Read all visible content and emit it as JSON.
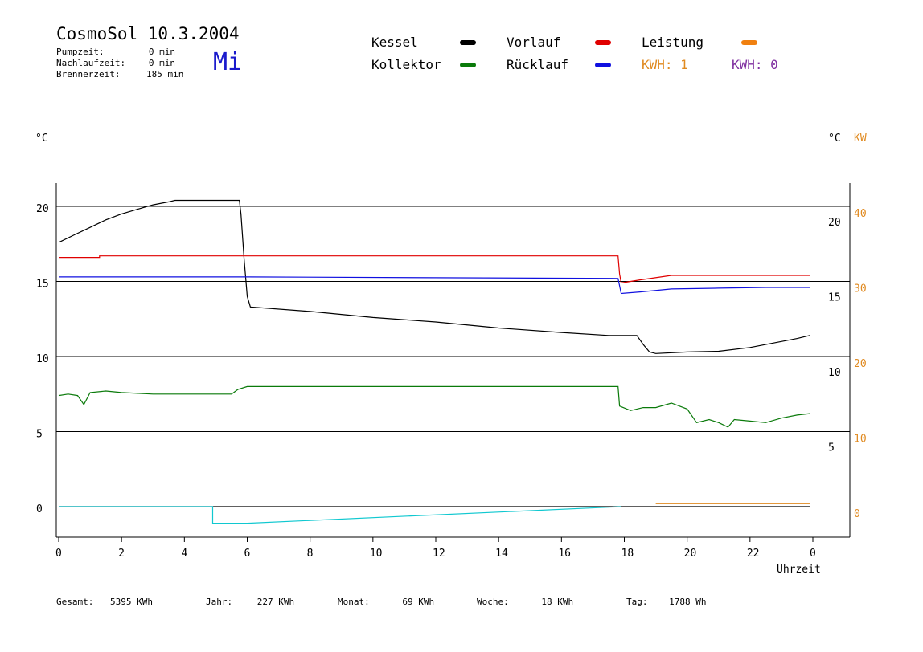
{
  "header": {
    "title": "CosmoSol 10.3.2004",
    "weekday": "Mi",
    "stats": [
      {
        "label": "Pumpzeit:",
        "value": "0 min"
      },
      {
        "label": "Nachlaufzeit:",
        "value": "0 min"
      },
      {
        "label": "Brennerzeit:",
        "value": "185 min"
      }
    ]
  },
  "legend": {
    "items": [
      {
        "label": "Kessel",
        "color": "#000000"
      },
      {
        "label": "Vorlauf",
        "color": "#e00000"
      },
      {
        "label": "Leistung",
        "color": "#f08010"
      },
      {
        "label": "Kollektor",
        "color": "#0a7a0a"
      },
      {
        "label": "Rücklauf",
        "color": "#1010e0"
      }
    ],
    "kwh_orange": "KWH: 1",
    "kwh_purple": "KWH: 0",
    "kwh_orange_color": "#e08a20",
    "kwh_purple_color": "#8030a0"
  },
  "axes": {
    "left_unit": "°C",
    "right_unit": "°C",
    "right_unit2": "KW",
    "xlabel": "Uhrzeit"
  },
  "footer": {
    "items": [
      {
        "label": "Gesamt:",
        "value": "5395 KWh"
      },
      {
        "label": "Jahr:",
        "value": "227 KWh"
      },
      {
        "label": "Monat:",
        "value": "69 KWh"
      },
      {
        "label": "Woche:",
        "value": "18 KWh"
      },
      {
        "label": "Tag:",
        "value": "1788 Wh"
      }
    ]
  },
  "chart_data": {
    "type": "line",
    "x_ticks": [
      "0",
      "2",
      "4",
      "6",
      "8",
      "10",
      "12",
      "14",
      "16",
      "18",
      "20",
      "22",
      "0"
    ],
    "xlim": [
      0,
      24
    ],
    "left_axis": {
      "ticks": [
        0,
        5,
        10,
        15,
        20
      ],
      "ylim": [
        -2,
        22
      ]
    },
    "right_axis_temp": {
      "ticks": [
        5,
        10,
        15,
        20
      ]
    },
    "right_axis_kw": {
      "ticks": [
        0,
        10,
        20,
        30,
        40
      ],
      "color": "#e08a20"
    },
    "grid": "horizontal",
    "series": [
      {
        "name": "Kessel",
        "color": "#000000",
        "points": [
          [
            0,
            17.6
          ],
          [
            0.5,
            18.1
          ],
          [
            1,
            18.6
          ],
          [
            1.5,
            19.1
          ],
          [
            2,
            19.5
          ],
          [
            2.5,
            19.8
          ],
          [
            3,
            20.1
          ],
          [
            3.5,
            20.3
          ],
          [
            3.7,
            20.4
          ],
          [
            5.75,
            20.4
          ],
          [
            5.8,
            19.5
          ],
          [
            5.9,
            16.5
          ],
          [
            6,
            14.0
          ],
          [
            6.1,
            13.3
          ],
          [
            8,
            13.0
          ],
          [
            10,
            12.6
          ],
          [
            12,
            12.3
          ],
          [
            14,
            11.9
          ],
          [
            16,
            11.6
          ],
          [
            17.5,
            11.4
          ],
          [
            18.4,
            11.4
          ],
          [
            18.6,
            10.8
          ],
          [
            18.8,
            10.3
          ],
          [
            19,
            10.2
          ],
          [
            20,
            10.3
          ],
          [
            21,
            10.35
          ],
          [
            22,
            10.6
          ],
          [
            23,
            11.0
          ],
          [
            23.5,
            11.2
          ],
          [
            23.9,
            11.4
          ]
        ]
      },
      {
        "name": "Vorlauf",
        "color": "#e00000",
        "points": [
          [
            0,
            16.6
          ],
          [
            1.3,
            16.6
          ],
          [
            1.3,
            16.7
          ],
          [
            17.8,
            16.7
          ],
          [
            17.85,
            15.5
          ],
          [
            17.9,
            14.9
          ],
          [
            18.5,
            15.1
          ],
          [
            19.5,
            15.4
          ],
          [
            20.5,
            15.4
          ],
          [
            22,
            15.4
          ],
          [
            23.9,
            15.4
          ]
        ]
      },
      {
        "name": "Rücklauf",
        "color": "#1010e0",
        "points": [
          [
            0,
            15.3
          ],
          [
            6,
            15.3
          ],
          [
            17.8,
            15.2
          ],
          [
            17.9,
            14.2
          ],
          [
            18.5,
            14.3
          ],
          [
            19.5,
            14.5
          ],
          [
            21,
            14.55
          ],
          [
            22.5,
            14.6
          ],
          [
            23.9,
            14.6
          ]
        ]
      },
      {
        "name": "Kollektor",
        "color": "#0a7a0a",
        "points": [
          [
            0,
            7.4
          ],
          [
            0.3,
            7.5
          ],
          [
            0.6,
            7.4
          ],
          [
            0.8,
            6.8
          ],
          [
            1,
            7.6
          ],
          [
            1.5,
            7.7
          ],
          [
            2,
            7.6
          ],
          [
            3,
            7.5
          ],
          [
            4,
            7.5
          ],
          [
            5,
            7.5
          ],
          [
            5.5,
            7.5
          ],
          [
            5.7,
            7.8
          ],
          [
            6,
            8.0
          ],
          [
            10,
            8.0
          ],
          [
            15,
            8.0
          ],
          [
            17.8,
            8.0
          ],
          [
            17.85,
            6.7
          ],
          [
            18.2,
            6.4
          ],
          [
            18.6,
            6.6
          ],
          [
            19,
            6.6
          ],
          [
            19.5,
            6.9
          ],
          [
            20,
            6.5
          ],
          [
            20.3,
            5.6
          ],
          [
            20.7,
            5.8
          ],
          [
            21,
            5.6
          ],
          [
            21.3,
            5.3
          ],
          [
            21.5,
            5.8
          ],
          [
            22,
            5.7
          ],
          [
            22.5,
            5.6
          ],
          [
            23,
            5.9
          ],
          [
            23.5,
            6.1
          ],
          [
            23.9,
            6.2
          ]
        ]
      },
      {
        "name": "Kessel (0 line)",
        "color": "#000000",
        "points": [
          [
            0,
            0
          ],
          [
            23.9,
            0
          ]
        ]
      },
      {
        "name": "cyan",
        "color": "#10c8d0",
        "points": [
          [
            0,
            0
          ],
          [
            4.9,
            0
          ],
          [
            4.9,
            -1.1
          ],
          [
            6,
            -1.1
          ],
          [
            17.9,
            0
          ]
        ]
      },
      {
        "name": "Leistung",
        "color": "#e08a20",
        "points": [
          [
            19,
            0.2
          ],
          [
            21.5,
            0.2
          ],
          [
            22,
            0.2
          ],
          [
            23.9,
            0.2
          ]
        ]
      }
    ]
  }
}
